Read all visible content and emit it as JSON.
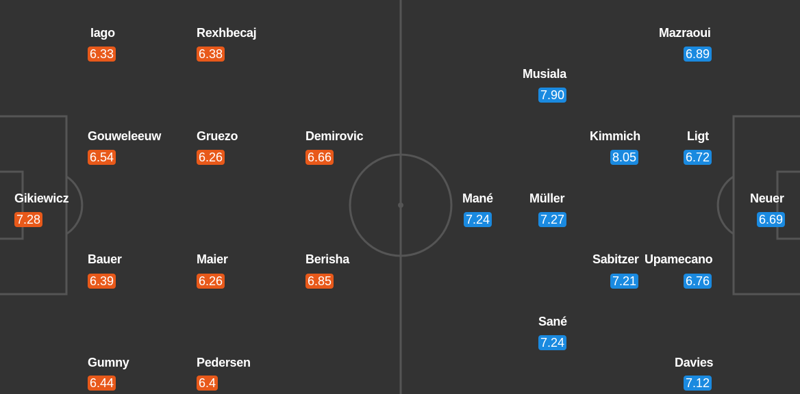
{
  "colors": {
    "background": "#333333",
    "lines": "#555555",
    "home_rating": "#e8591a",
    "away_rating": "#1a8ae0"
  },
  "home_team": {
    "players": [
      {
        "name": "Iago",
        "rating": "6.33"
      },
      {
        "name": "Rexhbecaj",
        "rating": "6.38"
      },
      {
        "name": "Gouweleeuw",
        "rating": "6.54"
      },
      {
        "name": "Gruezo",
        "rating": "6.26"
      },
      {
        "name": "Demirovic",
        "rating": "6.66"
      },
      {
        "name": "Gikiewicz",
        "rating": "7.28"
      },
      {
        "name": "Bauer",
        "rating": "6.39"
      },
      {
        "name": "Maier",
        "rating": "6.26"
      },
      {
        "name": "Berisha",
        "rating": "6.85"
      },
      {
        "name": "Gumny",
        "rating": "6.44"
      },
      {
        "name": "Pedersen",
        "rating": "6.4"
      }
    ]
  },
  "away_team": {
    "players": [
      {
        "name": "Mazraoui",
        "rating": "6.89"
      },
      {
        "name": "Musiala",
        "rating": "7.90"
      },
      {
        "name": "Kimmich",
        "rating": "8.05"
      },
      {
        "name": "Ligt",
        "rating": "6.72"
      },
      {
        "name": "Mané",
        "rating": "7.24"
      },
      {
        "name": "Müller",
        "rating": "7.27"
      },
      {
        "name": "Neuer",
        "rating": "6.69"
      },
      {
        "name": "Sabitzer",
        "rating": "7.21"
      },
      {
        "name": "Upamecano",
        "rating": "6.76"
      },
      {
        "name": "Sané",
        "rating": "7.24"
      },
      {
        "name": "Davies",
        "rating": "7.12"
      }
    ]
  }
}
